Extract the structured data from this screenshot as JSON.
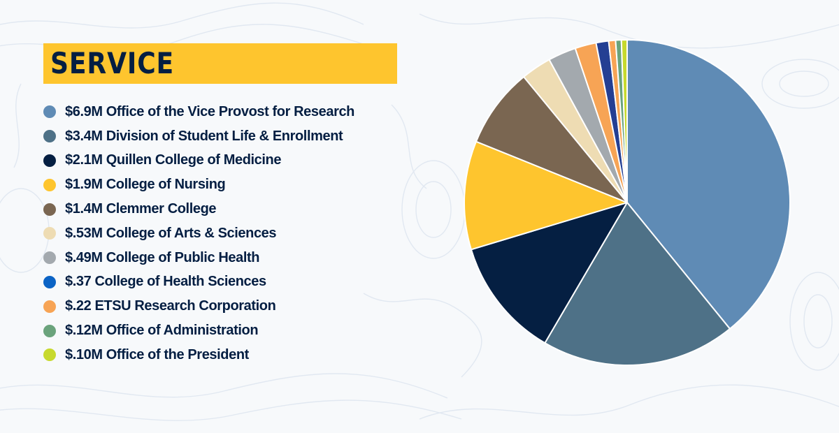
{
  "chart_data": {
    "type": "pie",
    "title": "SERVICE",
    "unit": "USD millions",
    "slices": [
      {
        "label": "$6.9M Office of the Vice Provost for Research",
        "value": 6.9,
        "color": "#5f8bb5"
      },
      {
        "label": "$3.4M Division of Student Life & Enrollment",
        "value": 3.4,
        "color": "#4e7187"
      },
      {
        "label": "$2.1M Quillen College of Medicine",
        "value": 2.1,
        "color": "#051f42"
      },
      {
        "label": "$1.9M College of Nursing",
        "value": 1.9,
        "color": "#fec52e"
      },
      {
        "label": "$1.4M Clemmer College",
        "value": 1.4,
        "color": "#7a6651"
      },
      {
        "label": "$.53M College of Arts & Sciences",
        "value": 0.53,
        "color": "#eedcb3"
      },
      {
        "label": "$.49M College of Public Health",
        "value": 0.49,
        "color": "#a3a9ae"
      },
      {
        "label": "$.37 College of Health Sciences",
        "value": 0.37,
        "color": "#f7a455"
      },
      {
        "label": "$.22 ETSU Research Corporation",
        "value": 0.22,
        "color": "#243f93"
      },
      {
        "label": "$.12M Office of Administration",
        "value": 0.12,
        "color": "#f7a455"
      },
      {
        "label": "$.10M Office of the President",
        "value": 0.1,
        "color": "#6aa37c"
      },
      {
        "value": 0.1,
        "color": "#c7d92e"
      }
    ],
    "legend": {
      "position": "left",
      "swatch_colors": [
        "#5f8bb5",
        "#4e7187",
        "#051f42",
        "#fec52e",
        "#7a6651",
        "#eedcb3",
        "#a3a9ae",
        "#0b63c5",
        "#f7a455",
        "#6aa37c",
        "#c7d92e"
      ]
    }
  }
}
